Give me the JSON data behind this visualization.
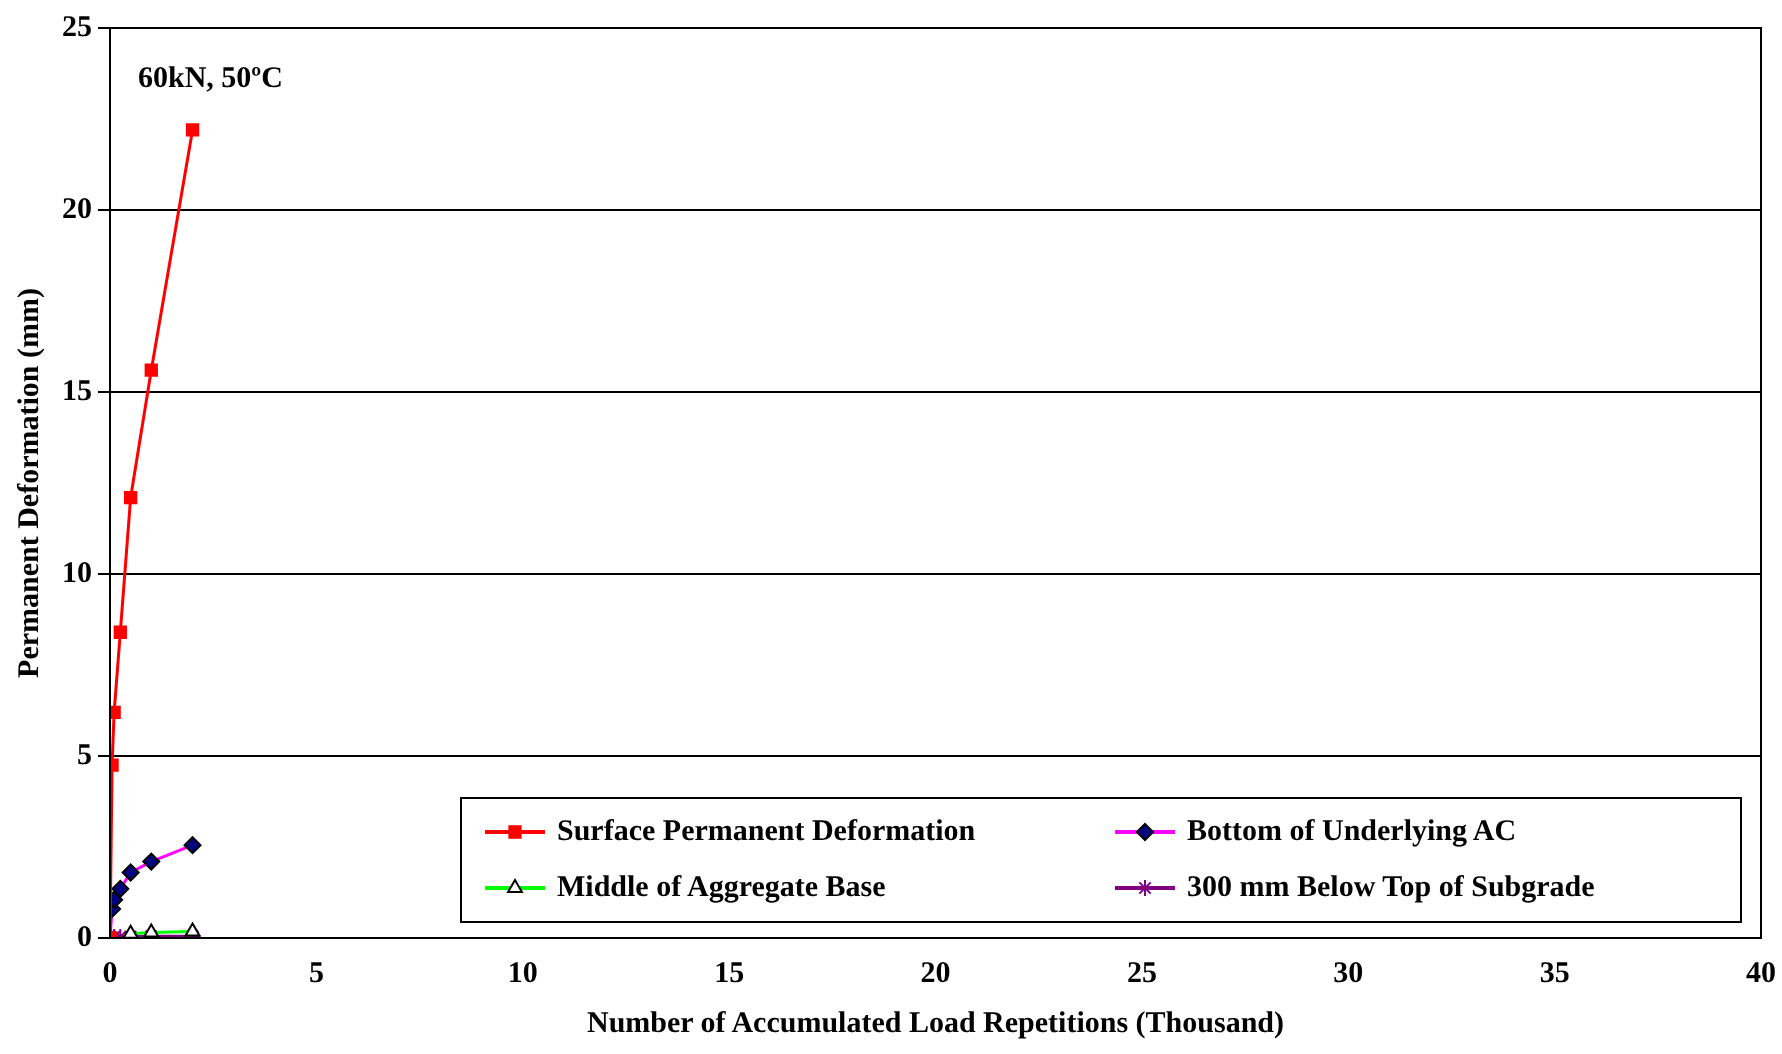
{
  "chart_data": {
    "type": "line",
    "xlabel": "Number of Accumulated Load Repetitions (Thousand)",
    "ylabel": "Permanent Deformation (mm)",
    "annotations": [
      "60kN, 50ºC"
    ],
    "x": [
      0,
      0.05,
      0.1,
      0.25,
      0.5,
      1,
      2
    ],
    "series": [
      {
        "name": "Surface Permanent Deformation",
        "color": "#ff0000",
        "marker": "square",
        "values": [
          0,
          4.75,
          6.2,
          8.4,
          12.1,
          15.6,
          22.2
        ]
      },
      {
        "name": "Bottom of Underlying AC",
        "color": "#ff00ff",
        "marker": "diamond",
        "values": [
          0,
          0.8,
          1.05,
          1.35,
          1.8,
          2.1,
          2.55
        ]
      },
      {
        "name": "Middle of Aggregate Base",
        "color": "#00ff00",
        "marker": "triangle",
        "values": [
          null,
          null,
          null,
          null,
          0.12,
          0.15,
          0.18
        ]
      },
      {
        "name": "300 mm Below Top of Subgrade",
        "color": "#800080",
        "marker": "cross",
        "values": [
          null,
          null,
          0.03,
          0.03,
          0.04,
          0.05,
          0.05
        ]
      }
    ],
    "xlim": [
      0,
      40
    ],
    "xticks": [
      0,
      5,
      10,
      15,
      20,
      25,
      30,
      35,
      40
    ],
    "ylim": [
      0,
      25
    ],
    "yticks": [
      0,
      5,
      10,
      15,
      20,
      25
    ],
    "grid": "y",
    "legend": "bottom right"
  }
}
